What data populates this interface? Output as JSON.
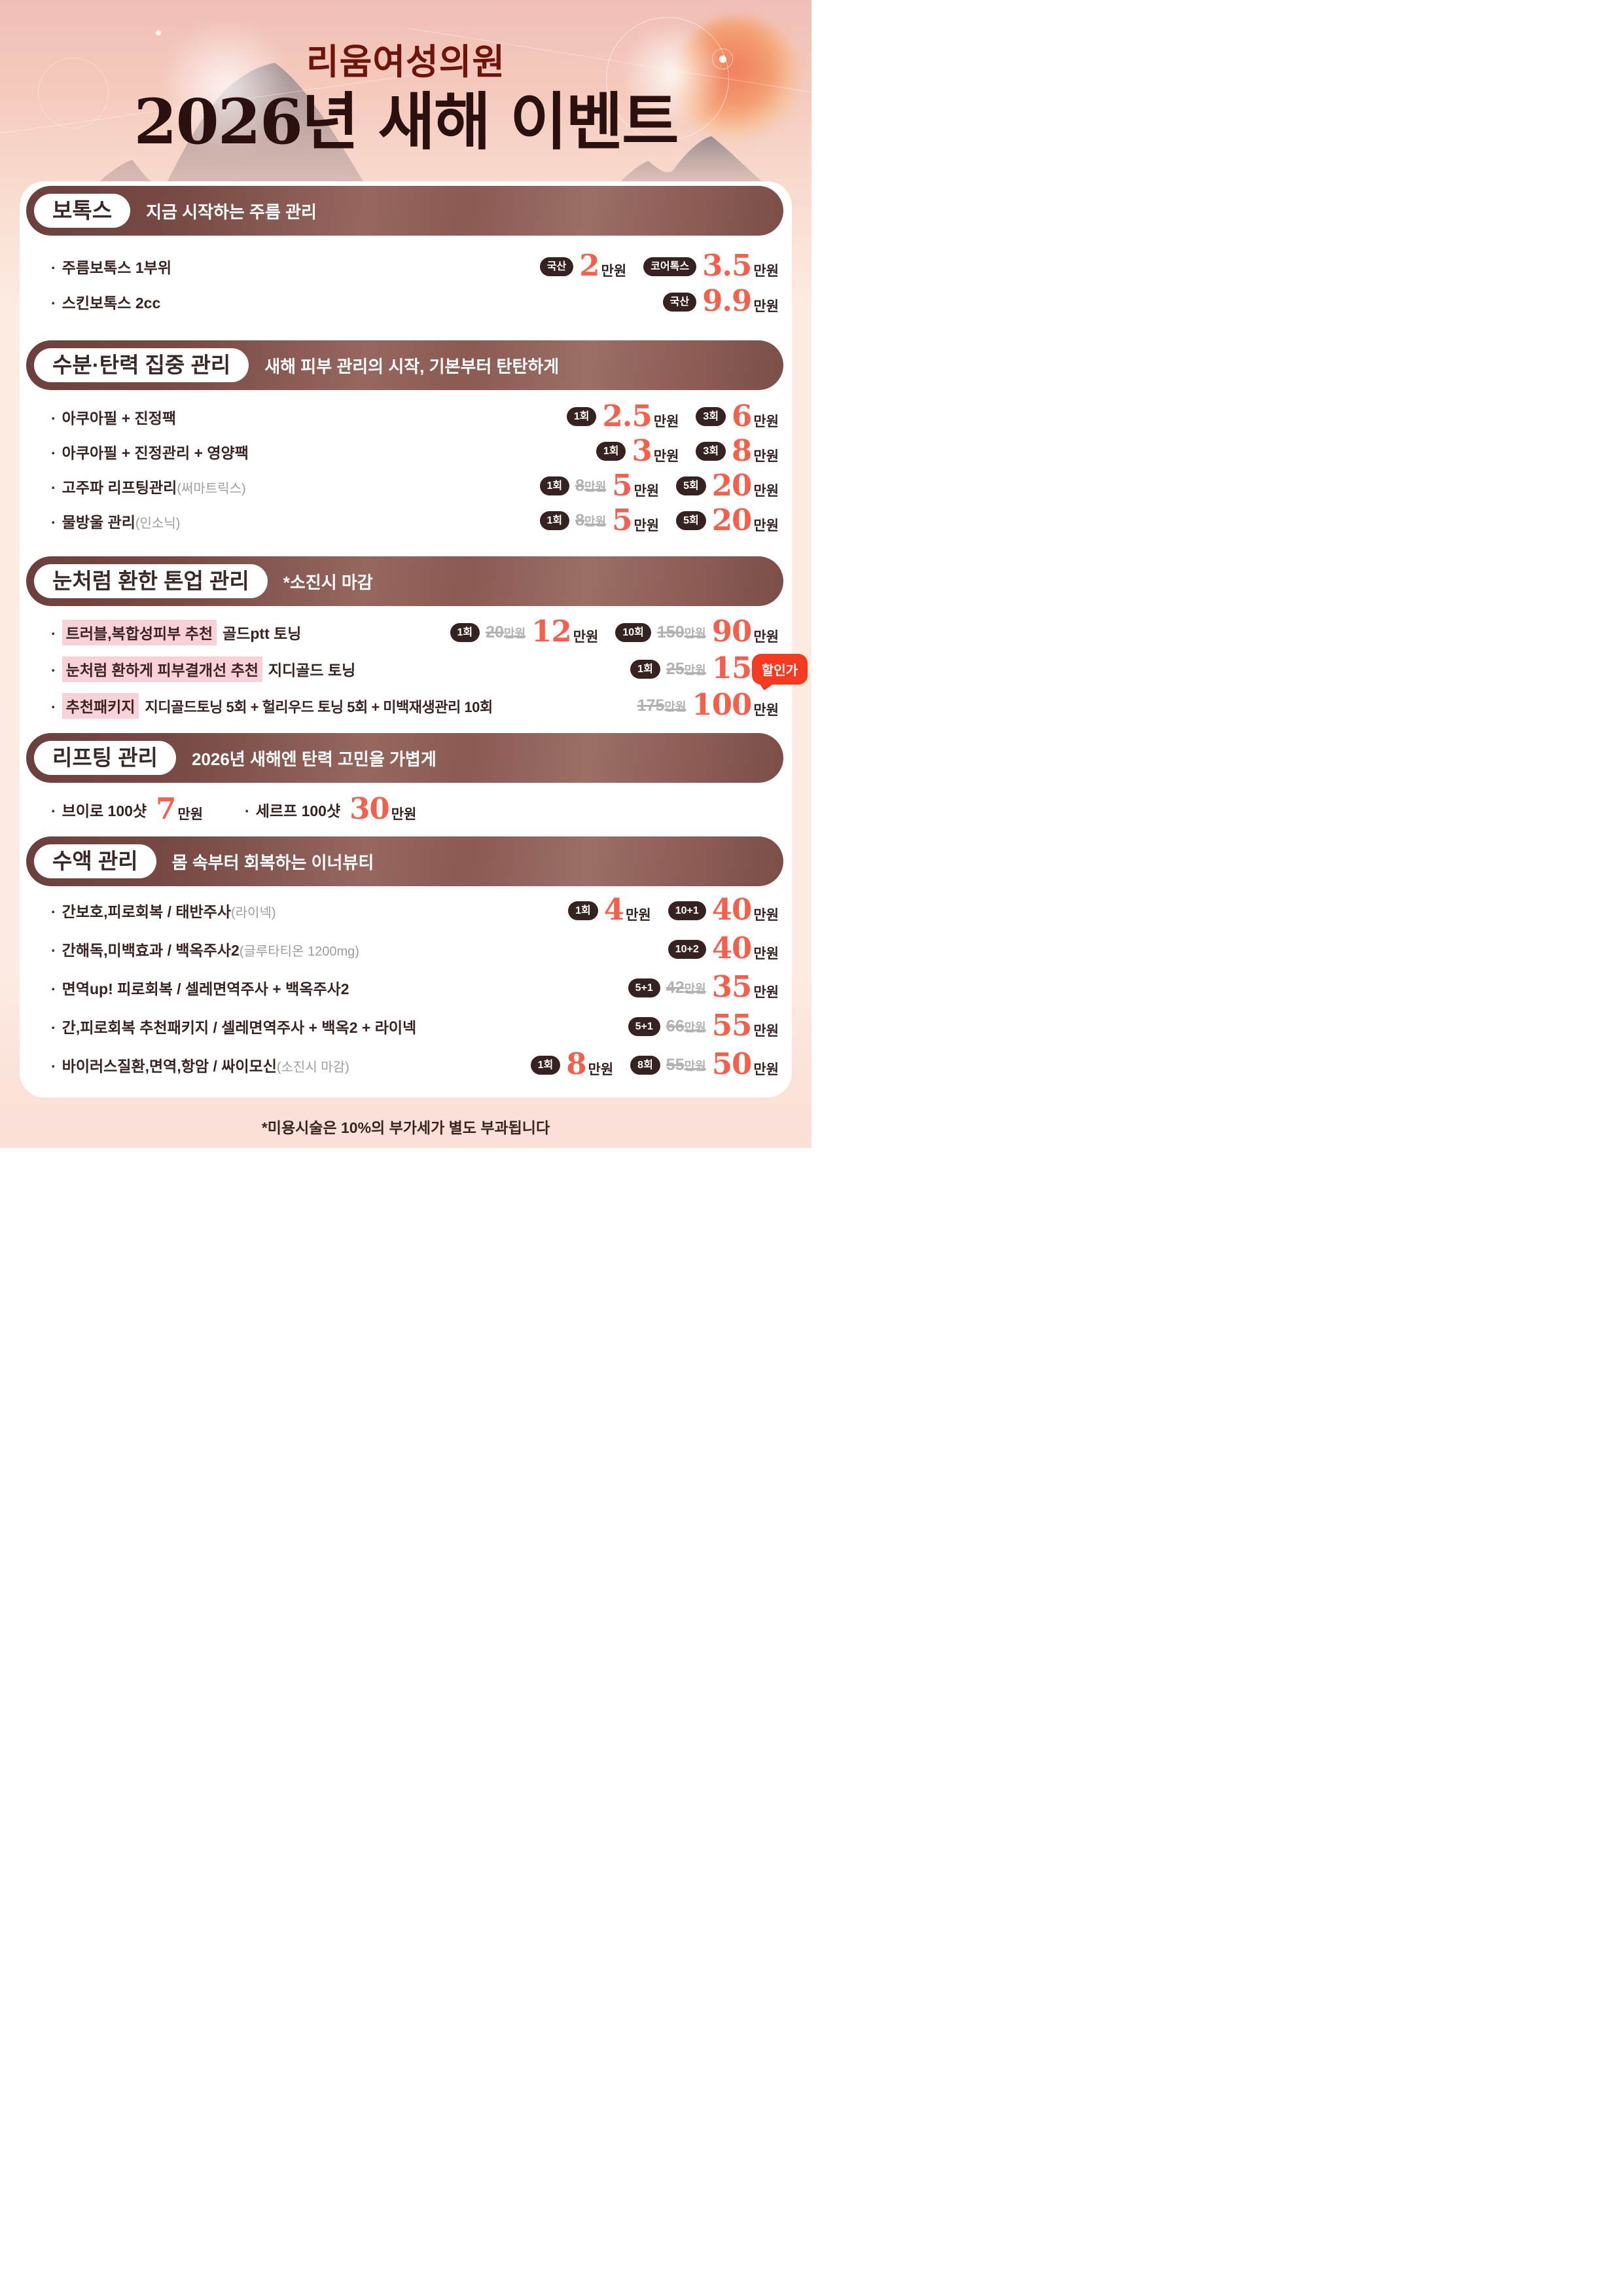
{
  "header": {
    "clinic": "리움여성의원",
    "title": "2026년 새해 이벤트"
  },
  "unit_label": "만원",
  "colors": {
    "price_accent": "#f5604d",
    "count_badge_bg": "#362220",
    "section_bar_left": "#6b403c",
    "section_bar_right": "#9c6e66",
    "highlight_pink": "#fbd1d9",
    "discount_tag_bg": "#f43a20",
    "clinic_title": "#6e150b"
  },
  "sections": [
    {
      "id": "botox",
      "title": "보톡스",
      "subtitle": "지금 시작하는 주름 관리",
      "rows": [
        {
          "name": "주름보톡스 1부위",
          "prices": [
            {
              "badge": "국산",
              "value": "2"
            },
            {
              "badge": "코어톡스",
              "value": "3.5"
            }
          ]
        },
        {
          "name": "스킨보톡스 2cc",
          "prices": [
            {
              "badge": "국산",
              "value": "9.9"
            }
          ]
        }
      ]
    },
    {
      "id": "moisture",
      "title": "수분·탄력 집중 관리",
      "subtitle": "새해 피부 관리의 시작, 기본부터 탄탄하게",
      "rows": [
        {
          "name": "아쿠아필 + 진정팩",
          "prices": [
            {
              "badge": "1회",
              "value": "2.5"
            },
            {
              "badge": "3회",
              "value": "6"
            }
          ]
        },
        {
          "name": "아쿠아필 + 진정관리 + 영양팩",
          "prices": [
            {
              "badge": "1회",
              "value": "3"
            },
            {
              "badge": "3회",
              "value": "8"
            }
          ]
        },
        {
          "name": "고주파 리프팅관리",
          "note": "(써마트릭스)",
          "prices": [
            {
              "badge": "1회",
              "old": "8",
              "value": "5"
            },
            {
              "badge": "5회",
              "value": "20"
            }
          ]
        },
        {
          "name": "물방울 관리",
          "note": "(인소닉)",
          "prices": [
            {
              "badge": "1회",
              "old": "8",
              "value": "5"
            },
            {
              "badge": "5회",
              "value": "20"
            }
          ]
        }
      ]
    },
    {
      "id": "toneup",
      "title": "눈처럼 환한 톤업 관리",
      "subtitle": "*소진시 마감",
      "rows": [
        {
          "highlight": "트러블,복합성피부 추천",
          "name": "골드ptt 토닝",
          "prices": [
            {
              "badge": "1회",
              "old": "20",
              "value": "12"
            },
            {
              "badge": "10회",
              "old": "150",
              "value": "90"
            }
          ]
        },
        {
          "highlight": "눈처럼 환하게 피부결개선 추천",
          "name": "지디골드 토닝",
          "prices": [
            {
              "badge": "1회",
              "old": "25",
              "value": "15"
            }
          ]
        },
        {
          "highlight": "추천패키지",
          "name": "지디골드토닝 5회 + 헐리우드 토닝 5회 + 미백재생관리 10회",
          "prices": [
            {
              "old": "175",
              "value": "100"
            }
          ],
          "tag": "할인가"
        }
      ]
    },
    {
      "id": "lifting",
      "title": "리프팅 관리",
      "subtitle": "2026년 새해엔 탄력 고민을 가볍게",
      "inline_rows": [
        {
          "name": "브이로 100샷",
          "value": "7"
        },
        {
          "name": "세르프 100샷",
          "value": "30"
        }
      ]
    },
    {
      "id": "iv",
      "title": "수액 관리",
      "subtitle": "몸 속부터 회복하는 이너뷰티",
      "rows": [
        {
          "name": "간보호,피로회복 / 태반주사",
          "note": "(라이넥)",
          "prices": [
            {
              "badge": "1회",
              "value": "4"
            },
            {
              "badge": "10+1",
              "value": "40"
            }
          ]
        },
        {
          "name": "간해독,미백효과 / 백옥주사2",
          "note": "(글루타티온 1200mg)",
          "prices": [
            {
              "badge": "10+2",
              "value": "40"
            }
          ]
        },
        {
          "name": "면역up! 피로회복 / 셀레면역주사 + 백옥주사2",
          "prices": [
            {
              "badge": "5+1",
              "old": "42",
              "value": "35"
            }
          ]
        },
        {
          "name": "간,피로회복 추천패키지 / 셀레면역주사 + 백옥2 + 라이넥",
          "prices": [
            {
              "badge": "5+1",
              "old": "66",
              "value": "55"
            }
          ]
        },
        {
          "name": "바이러스질환,면역,항암 / 싸이모신",
          "note": "(소진시 마감)",
          "prices": [
            {
              "badge": "1회",
              "value": "8"
            },
            {
              "badge": "8회",
              "old": "55",
              "value": "50"
            }
          ]
        }
      ]
    }
  ],
  "footer": {
    "note": "*미용시술은 10%의 부가세가 별도 부과됩니다"
  }
}
